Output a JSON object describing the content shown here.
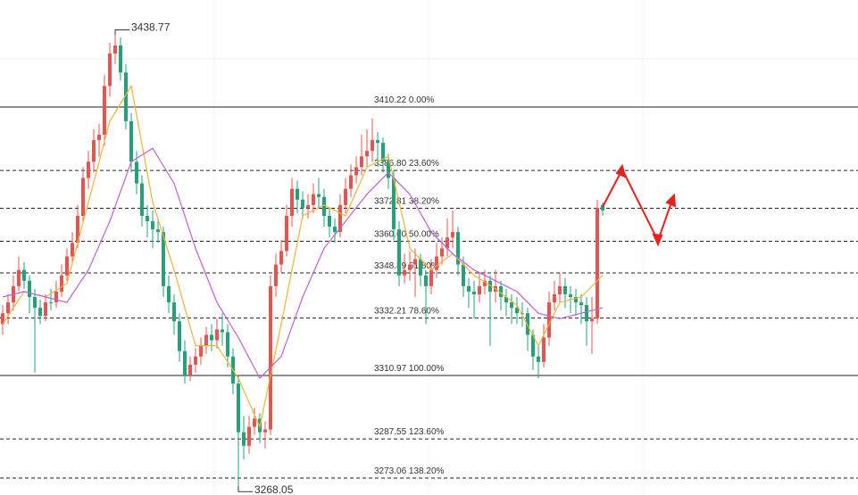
{
  "chart_data": {
    "type": "candlestick",
    "ylim": [
      3266.8,
      3449.8
    ],
    "up_color": "#e8534f",
    "down_color": "#22a279",
    "candles": [
      [
        3330,
        3337,
        3326,
        3334
      ],
      [
        3334,
        3341,
        3330,
        3338
      ],
      [
        3338,
        3348,
        3335,
        3344
      ],
      [
        3344,
        3355,
        3342,
        3350
      ],
      [
        3350,
        3353,
        3343,
        3346
      ],
      [
        3346,
        3348,
        3334,
        3340
      ],
      [
        3340,
        3343,
        3312,
        3336
      ],
      [
        3336,
        3339,
        3330,
        3333
      ],
      [
        3333,
        3341,
        3331,
        3338
      ],
      [
        3338,
        3343,
        3335,
        3338
      ],
      [
        3338,
        3346,
        3336,
        3342
      ],
      [
        3342,
        3352,
        3340,
        3348
      ],
      [
        3348,
        3358,
        3346,
        3355
      ],
      [
        3355,
        3364,
        3352,
        3360
      ],
      [
        3360,
        3374,
        3358,
        3370
      ],
      [
        3370,
        3388,
        3368,
        3384
      ],
      [
        3384,
        3394,
        3380,
        3390
      ],
      [
        3390,
        3402,
        3386,
        3398
      ],
      [
        3398,
        3404,
        3392,
        3400
      ],
      [
        3400,
        3422,
        3396,
        3418
      ],
      [
        3418,
        3434,
        3414,
        3430
      ],
      [
        3430,
        3438.77,
        3426,
        3433
      ],
      [
        3433,
        3436,
        3420,
        3423
      ],
      [
        3423,
        3426,
        3402,
        3405
      ],
      [
        3405,
        3408,
        3386,
        3390
      ],
      [
        3390,
        3394,
        3378,
        3382
      ],
      [
        3382,
        3385,
        3366,
        3370
      ],
      [
        3370,
        3374,
        3362,
        3368
      ],
      [
        3368,
        3372,
        3358,
        3365
      ],
      [
        3365,
        3369,
        3360,
        3364
      ],
      [
        3364,
        3366,
        3340,
        3344
      ],
      [
        3344,
        3348,
        3334,
        3338
      ],
      [
        3338,
        3341,
        3326,
        3331
      ],
      [
        3331,
        3334,
        3316,
        3320
      ],
      [
        3320,
        3324,
        3308,
        3311
      ],
      [
        3311,
        3318,
        3309,
        3315
      ],
      [
        3315,
        3321,
        3312,
        3318
      ],
      [
        3318,
        3325,
        3315,
        3322
      ],
      [
        3322,
        3329,
        3319,
        3326
      ],
      [
        3326,
        3330,
        3320,
        3324
      ],
      [
        3324,
        3332,
        3321,
        3328
      ],
      [
        3328,
        3334,
        3322,
        3327
      ],
      [
        3327,
        3330,
        3314,
        3318
      ],
      [
        3318,
        3321,
        3304,
        3308
      ],
      [
        3308,
        3311,
        3268.05,
        3290
      ],
      [
        3290,
        3296,
        3280,
        3285
      ],
      [
        3285,
        3296,
        3282,
        3292
      ],
      [
        3292,
        3299,
        3289,
        3295
      ],
      [
        3295,
        3297,
        3286,
        3290
      ],
      [
        3290,
        3294,
        3284,
        3291
      ],
      [
        3291,
        3348,
        3289,
        3344
      ],
      [
        3344,
        3356,
        3340,
        3352
      ],
      [
        3352,
        3361,
        3349,
        3357
      ],
      [
        3357,
        3374,
        3355,
        3370
      ],
      [
        3370,
        3384,
        3366,
        3380
      ],
      [
        3380,
        3383,
        3371,
        3376
      ],
      [
        3376,
        3379,
        3369,
        3373
      ],
      [
        3373,
        3378,
        3369,
        3374
      ],
      [
        3374,
        3382,
        3371,
        3378
      ],
      [
        3378,
        3384,
        3373,
        3377
      ],
      [
        3377,
        3380,
        3366,
        3370
      ],
      [
        3370,
        3373,
        3362,
        3366
      ],
      [
        3366,
        3369,
        3360,
        3364
      ],
      [
        3364,
        3378,
        3362,
        3374
      ],
      [
        3374,
        3384,
        3371,
        3380
      ],
      [
        3380,
        3389,
        3377,
        3385
      ],
      [
        3385,
        3392,
        3382,
        3388
      ],
      [
        3388,
        3400,
        3385,
        3392
      ],
      [
        3392,
        3402,
        3388,
        3394
      ],
      [
        3394,
        3406,
        3390,
        3398
      ],
      [
        3398,
        3401,
        3388,
        3397
      ],
      [
        3397,
        3399,
        3386,
        3390
      ],
      [
        3390,
        3393,
        3380,
        3384
      ],
      [
        3384,
        3387,
        3361,
        3365
      ],
      [
        3365,
        3368,
        3344,
        3348
      ],
      [
        3348,
        3356,
        3345,
        3350
      ],
      [
        3350,
        3357,
        3346,
        3352
      ],
      [
        3352,
        3358,
        3340,
        3354
      ],
      [
        3354,
        3356,
        3344,
        3348
      ],
      [
        3348,
        3350,
        3330,
        3344
      ],
      [
        3344,
        3354,
        3341,
        3350
      ],
      [
        3350,
        3360,
        3347,
        3355
      ],
      [
        3355,
        3362,
        3352,
        3358
      ],
      [
        3358,
        3369,
        3355,
        3362
      ],
      [
        3362,
        3372,
        3358,
        3364
      ],
      [
        3364,
        3366,
        3348,
        3352
      ],
      [
        3352,
        3355,
        3340,
        3344
      ],
      [
        3344,
        3347,
        3336,
        3342
      ],
      [
        3342,
        3346,
        3332,
        3341
      ],
      [
        3341,
        3349,
        3338,
        3344
      ],
      [
        3344,
        3350,
        3341,
        3346
      ],
      [
        3346,
        3348,
        3322,
        3342
      ],
      [
        3342,
        3350,
        3338,
        3344
      ],
      [
        3344,
        3346,
        3335,
        3340
      ],
      [
        3340,
        3343,
        3333,
        3338
      ],
      [
        3338,
        3341,
        3330,
        3336
      ],
      [
        3336,
        3340,
        3330,
        3334
      ],
      [
        3334,
        3338,
        3329,
        3334
      ],
      [
        3334,
        3336,
        3320,
        3326
      ],
      [
        3326,
        3328,
        3313,
        3318
      ],
      [
        3318,
        3322,
        3310,
        3316
      ],
      [
        3316,
        3330,
        3314,
        3325
      ],
      [
        3325,
        3342,
        3322,
        3338
      ],
      [
        3338,
        3346,
        3335,
        3341
      ],
      [
        3341,
        3349,
        3338,
        3344
      ],
      [
        3344,
        3347,
        3336,
        3341
      ],
      [
        3341,
        3344,
        3334,
        3340
      ],
      [
        3340,
        3343,
        3333,
        3338
      ],
      [
        3338,
        3341,
        3330,
        3337
      ],
      [
        3337,
        3340,
        3322,
        3331
      ],
      [
        3331,
        3340,
        3319,
        3332
      ],
      [
        3332,
        3376,
        3330,
        3373
      ],
      [
        3374,
        3375,
        3370,
        3372
      ]
    ],
    "lines": [
      {
        "color": "#f2b233",
        "x": [
          0,
          4,
          8,
          12,
          16,
          20,
          24,
          28,
          32,
          36,
          40,
          44,
          48,
          52,
          56,
          60,
          64,
          68,
          72,
          76,
          80,
          84,
          88,
          92,
          96,
          100,
          104,
          108,
          112
        ],
        "values": [
          3330,
          3342,
          3340,
          3345,
          3375,
          3405,
          3418,
          3375,
          3350,
          3322,
          3322,
          3310,
          3292,
          3330,
          3370,
          3374,
          3370,
          3388,
          3392,
          3358,
          3350,
          3356,
          3348,
          3343,
          3337,
          3322,
          3338,
          3340,
          3348
        ]
      },
      {
        "color": "#c25fd6",
        "x": [
          0,
          4,
          8,
          12,
          16,
          20,
          24,
          28,
          32,
          36,
          40,
          44,
          48,
          52,
          56,
          60,
          64,
          68,
          72,
          76,
          80,
          84,
          88,
          92,
          96,
          100,
          104,
          108,
          112
        ],
        "values": [
          3340,
          3342,
          3340,
          3338,
          3350,
          3368,
          3390,
          3395,
          3382,
          3358,
          3338,
          3325,
          3310,
          3318,
          3340,
          3358,
          3368,
          3378,
          3386,
          3378,
          3364,
          3356,
          3350,
          3346,
          3342,
          3334,
          3332,
          3334,
          3336
        ]
      }
    ],
    "fib_levels": [
      {
        "price": 3410.22,
        "label": "3410.22 0.00%",
        "style": "solid"
      },
      {
        "price": 3386.8,
        "label": "3386.80 23.60%",
        "style": "dashed"
      },
      {
        "price": 3372.81,
        "label": "3372.81 38.20%",
        "style": "dashed"
      },
      {
        "price": 3360.6,
        "label": "3360.60 50.00%",
        "style": "dashed"
      },
      {
        "price": 3348.89,
        "label": "3348.89 61.80%",
        "style": "dashed"
      },
      {
        "price": 3332.21,
        "label": "3332.21 78.60%",
        "style": "dashed"
      },
      {
        "price": 3310.97,
        "label": "3310.97 100.00%",
        "style": "solid"
      },
      {
        "price": 3287.55,
        "label": "3287.55 123.60%",
        "style": "dashed"
      },
      {
        "price": 3273.06,
        "label": "3273.06 138.20%",
        "style": "dashed"
      }
    ],
    "high": 3438.77,
    "low": 3268.05
  }
}
